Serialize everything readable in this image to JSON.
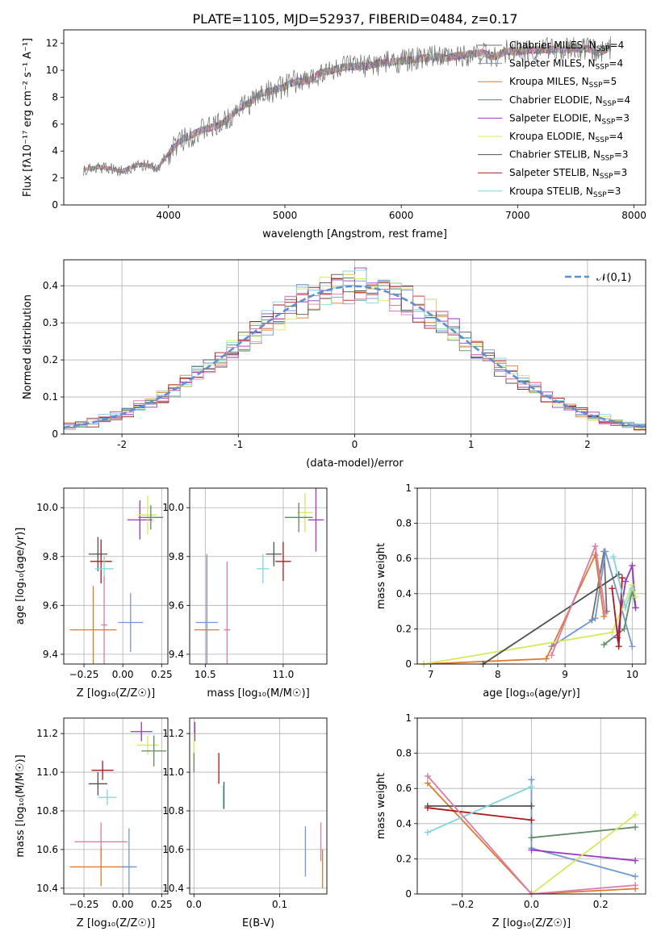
{
  "figure": {
    "title": "PLATE=1105, MJD=52937, FIBERID=0484, z=0.17"
  },
  "colors": [
    "#6f6f6f",
    "#7098d8",
    "#e07a2a",
    "#5f8a64",
    "#9a35c8",
    "#d4ea5a",
    "#505050",
    "#b01818",
    "#7fd6dc",
    "#e07aa8"
  ],
  "chart_data": [
    {
      "id": "spectrum",
      "type": "line",
      "xlabel": "wavelength [Angstrom, rest frame]",
      "ylabel": "Flux [f_λ 10^-17 erg cm^-2 s^-1 A^-1]",
      "xlim": [
        3100,
        8100
      ],
      "ylim": [
        0,
        13
      ],
      "xticks": [
        4000,
        5000,
        6000,
        7000,
        8000
      ],
      "yticks": [
        0,
        2,
        4,
        6,
        8,
        10,
        12
      ],
      "grid": false,
      "legend_position": "upper right",
      "data_series": {
        "name": "",
        "points": [
          [
            3270,
            2.6
          ],
          [
            3400,
            2.8
          ],
          [
            3500,
            2.7
          ],
          [
            3600,
            2.5
          ],
          [
            3700,
            2.9
          ],
          [
            3800,
            3.0
          ],
          [
            3900,
            2.6
          ],
          [
            3970,
            3.5
          ],
          [
            4100,
            4.8
          ],
          [
            4200,
            5.2
          ],
          [
            4300,
            5.6
          ],
          [
            4400,
            5.8
          ],
          [
            4500,
            6.3
          ],
          [
            4600,
            7.2
          ],
          [
            4700,
            7.6
          ],
          [
            4800,
            8.3
          ],
          [
            4900,
            8.5
          ],
          [
            5000,
            8.8
          ],
          [
            5100,
            9.2
          ],
          [
            5200,
            9.2
          ],
          [
            5300,
            9.8
          ],
          [
            5400,
            10.0
          ],
          [
            5500,
            10.2
          ],
          [
            5600,
            10.3
          ],
          [
            5700,
            10.3
          ],
          [
            5800,
            10.5
          ],
          [
            5900,
            10.6
          ],
          [
            6000,
            10.7
          ],
          [
            6100,
            10.8
          ],
          [
            6200,
            10.9
          ],
          [
            6300,
            11.0
          ],
          [
            6400,
            10.9
          ],
          [
            6500,
            11.1
          ],
          [
            6600,
            11.2
          ],
          [
            6700,
            11.3
          ],
          [
            6800,
            11.0
          ],
          [
            6900,
            11.4
          ],
          [
            7000,
            11.4
          ],
          [
            7100,
            11.5
          ],
          [
            7200,
            11.5
          ],
          [
            7300,
            11.6
          ],
          [
            7400,
            11.5
          ],
          [
            7500,
            11.6
          ],
          [
            7600,
            11.6
          ],
          [
            7700,
            11.3
          ],
          [
            7800,
            11.7
          ]
        ]
      },
      "legend": [
        "Chabrier MILES, N_SSP=4",
        "Salpeter MILES, N_SSP=4",
        "Kroupa MILES, N_SSP=5",
        "Chabrier ELODIE, N_SSP=4",
        "Salpeter ELODIE, N_SSP=3",
        "Kroupa ELODIE, N_SSP=4",
        "Chabrier STELIB, N_SSP=3",
        "Salpeter STELIB, N_SSP=3",
        "Kroupa STELIB, N_SSP=3"
      ]
    },
    {
      "id": "histogram",
      "type": "line",
      "xlabel": "(data-model)/error",
      "ylabel": "Normed distribution",
      "xlim": [
        -2.5,
        2.5
      ],
      "ylim": [
        0,
        0.47
      ],
      "xticks": [
        -2,
        -1,
        0,
        1,
        2
      ],
      "yticks": [
        0.0,
        0.1,
        0.2,
        0.3,
        0.4
      ],
      "grid": true,
      "legend_position": "upper right",
      "legend": [
        "𝒩(0,1)"
      ],
      "bin_width": 0.1,
      "bin_start": -2.5,
      "normal_curve": {
        "mean": 0,
        "sigma": 1
      }
    },
    {
      "id": "z-age",
      "type": "scatter",
      "xlabel": "Z [log10(Z/Z☉)]",
      "ylabel": "age [log10(age/yr)]",
      "xlim": [
        -0.38,
        0.29
      ],
      "ylim": [
        9.36,
        10.08
      ],
      "xticks": [
        -0.25,
        0.0,
        0.25
      ],
      "xticklabels": [
        "−0.25",
        "0.00",
        "0.25"
      ],
      "yticks": [
        9.4,
        9.6,
        9.8,
        10.0
      ],
      "yticklabels": [
        "9.4",
        "9.6",
        "9.8",
        "10.0"
      ],
      "grid": true,
      "points": [
        {
          "x": -0.16,
          "y": 9.81,
          "xerr": 0.06,
          "yerr": 0.07,
          "c": 6
        },
        {
          "x": -0.14,
          "y": 9.78,
          "xerr": 0.07,
          "yerr": 0.09,
          "c": 7
        },
        {
          "x": -0.12,
          "y": 9.75,
          "xerr": 0.06,
          "yerr": 0.05,
          "c": 8
        },
        {
          "x": -0.12,
          "y": 9.52,
          "xerr": 0.02,
          "yerr": 0.2,
          "c": 9
        },
        {
          "x": -0.19,
          "y": 9.5,
          "xerr": 0.15,
          "yerr": 0.18,
          "c": 2
        },
        {
          "x": 0.05,
          "y": 9.53,
          "xerr": 0.08,
          "yerr": 0.12,
          "c": 1
        },
        {
          "x": 0.11,
          "y": 9.95,
          "xerr": 0.08,
          "yerr": 0.08,
          "c": 4
        },
        {
          "x": 0.16,
          "y": 9.97,
          "xerr": 0.06,
          "yerr": 0.08,
          "c": 5
        },
        {
          "x": 0.18,
          "y": 9.96,
          "xerr": 0.08,
          "yerr": 0.05,
          "c": 3
        }
      ]
    },
    {
      "id": "mass-age",
      "type": "scatter",
      "xlabel": "mass [log10(M/M☉)]",
      "ylabel": "",
      "xlim": [
        10.4,
        11.28
      ],
      "ylim": [
        9.36,
        10.08
      ],
      "xticks": [
        10.5,
        11.0
      ],
      "xticklabels": [
        "10.5",
        "11.0"
      ],
      "yticks": [
        9.4,
        9.6,
        9.8,
        10.0
      ],
      "yticklabels": [
        "9.4",
        "9.6",
        "9.8",
        "10.0"
      ],
      "grid": true,
      "points": [
        {
          "x": 10.94,
          "y": 9.81,
          "xerr": 0.05,
          "yerr": 0.05,
          "c": 6
        },
        {
          "x": 11.0,
          "y": 9.78,
          "xerr": 0.05,
          "yerr": 0.08,
          "c": 7
        },
        {
          "x": 10.87,
          "y": 9.75,
          "xerr": 0.04,
          "yerr": 0.06,
          "c": 8
        },
        {
          "x": 10.64,
          "y": 9.5,
          "xerr": 0.02,
          "yerr": 0.28,
          "c": 9
        },
        {
          "x": 10.51,
          "y": 9.5,
          "xerr": 0.08,
          "yerr": 0.3,
          "c": 2
        },
        {
          "x": 10.51,
          "y": 9.53,
          "xerr": 0.07,
          "yerr": 0.28,
          "c": 1
        },
        {
          "x": 11.21,
          "y": 9.95,
          "xerr": 0.05,
          "yerr": 0.13,
          "c": 4
        },
        {
          "x": 11.14,
          "y": 9.98,
          "xerr": 0.05,
          "yerr": 0.08,
          "c": 5
        },
        {
          "x": 11.1,
          "y": 9.96,
          "xerr": 0.09,
          "yerr": 0.06,
          "c": 3
        }
      ]
    },
    {
      "id": "age-weight",
      "type": "line",
      "xlabel": "age [log10(age/yr)]",
      "ylabel": "mass weight",
      "xlim": [
        6.8,
        10.2
      ],
      "ylim": [
        0,
        1
      ],
      "xticks": [
        7,
        8,
        9,
        10
      ],
      "yticks": [
        0.0,
        0.2,
        0.4,
        0.6,
        0.8,
        1.0
      ],
      "grid": true,
      "series": [
        {
          "c": 0,
          "points": [
            [
              9.4,
              0.25
            ],
            [
              9.58,
              0.64
            ],
            [
              9.62,
              0.3
            ]
          ]
        },
        {
          "c": 1,
          "points": [
            [
              8.8,
              0.1
            ],
            [
              9.45,
              0.26
            ],
            [
              9.6,
              0.64
            ],
            [
              10.0,
              0.1
            ]
          ]
        },
        {
          "c": 2,
          "points": [
            [
              6.9,
              0.0
            ],
            [
              8.72,
              0.03
            ],
            [
              9.45,
              0.62
            ],
            [
              9.58,
              0.27
            ]
          ]
        },
        {
          "c": 3,
          "points": [
            [
              9.58,
              0.11
            ],
            [
              9.88,
              0.2
            ],
            [
              10.0,
              0.42
            ],
            [
              10.05,
              0.32
            ]
          ]
        },
        {
          "c": 4,
          "points": [
            [
              9.78,
              0.15
            ],
            [
              9.9,
              0.47
            ],
            [
              10.0,
              0.56
            ],
            [
              10.05,
              0.32
            ]
          ]
        },
        {
          "c": 5,
          "points": [
            [
              6.9,
              0.0
            ],
            [
              9.7,
              0.18
            ],
            [
              10.0,
              0.45
            ],
            [
              10.05,
              0.38
            ]
          ]
        },
        {
          "c": 6,
          "points": [
            [
              7.78,
              0.0
            ],
            [
              9.8,
              0.51
            ]
          ]
        },
        {
          "c": 7,
          "points": [
            [
              9.7,
              0.43
            ],
            [
              9.8,
              0.1
            ],
            [
              9.85,
              0.49
            ]
          ]
        },
        {
          "c": 8,
          "points": [
            [
              9.72,
              0.61
            ],
            [
              9.9,
              0.32
            ],
            [
              10.0,
              0.43
            ]
          ]
        },
        {
          "c": 9,
          "points": [
            [
              8.8,
              0.05
            ],
            [
              9.45,
              0.67
            ],
            [
              9.6,
              0.29
            ]
          ]
        }
      ]
    },
    {
      "id": "z-mass",
      "type": "scatter",
      "xlabel": "Z [log10(Z/Z☉)]",
      "ylabel": "mass [log10(M/M☉)]",
      "xlim": [
        -0.38,
        0.29
      ],
      "ylim": [
        10.37,
        11.28
      ],
      "xticks": [
        -0.25,
        0.0,
        0.25
      ],
      "xticklabels": [
        "−0.25",
        "0.00",
        "0.25"
      ],
      "yticks": [
        10.4,
        10.6,
        10.8,
        11.0,
        11.2
      ],
      "yticklabels": [
        "10.4",
        "10.6",
        "10.8",
        "11.0",
        "11.2"
      ],
      "grid": true,
      "points": [
        {
          "x": -0.16,
          "y": 10.94,
          "xerr": 0.06,
          "yerr": 0.06,
          "c": 6
        },
        {
          "x": -0.13,
          "y": 11.01,
          "xerr": 0.07,
          "yerr": 0.05,
          "c": 7
        },
        {
          "x": -0.1,
          "y": 10.87,
          "xerr": 0.06,
          "yerr": 0.04,
          "c": 8
        },
        {
          "x": -0.14,
          "y": 10.64,
          "xerr": 0.17,
          "yerr": 0.1,
          "c": 9
        },
        {
          "x": -0.14,
          "y": 10.51,
          "xerr": 0.2,
          "yerr": 0.1,
          "c": 2
        },
        {
          "x": 0.04,
          "y": 10.51,
          "xerr": 0.05,
          "yerr": 0.2,
          "c": 1
        },
        {
          "x": 0.12,
          "y": 11.21,
          "xerr": 0.07,
          "yerr": 0.05,
          "c": 4
        },
        {
          "x": 0.16,
          "y": 11.14,
          "xerr": 0.07,
          "yerr": 0.05,
          "c": 5
        },
        {
          "x": 0.2,
          "y": 11.11,
          "xerr": 0.08,
          "yerr": 0.08,
          "c": 3
        }
      ]
    },
    {
      "id": "ebv-mass",
      "type": "scatter",
      "xlabel": "E(B-V)",
      "ylabel": "",
      "xlim": [
        -0.005,
        0.155
      ],
      "ylim": [
        10.37,
        11.28
      ],
      "xticks": [
        0.0,
        0.1
      ],
      "xticklabels": [
        "0.0",
        "0.1"
      ],
      "yticks": [
        10.4,
        10.6,
        10.8,
        11.0,
        11.2
      ],
      "yticklabels": [
        "10.4",
        "10.6",
        "10.8",
        "11.0",
        "11.2"
      ],
      "grid": true,
      "points": [
        {
          "x": 0.001,
          "y": 11.21,
          "xerr": 0,
          "yerr": 0.05,
          "c": 4
        },
        {
          "x": 0.0,
          "y": 11.12,
          "xerr": 0,
          "yerr": 0.08,
          "c": 5
        },
        {
          "x": 0.0,
          "y": 11.05,
          "xerr": 0,
          "yerr": 0.05,
          "c": 3
        },
        {
          "x": 0.029,
          "y": 11.02,
          "xerr": 0,
          "yerr": 0.08,
          "c": 7
        },
        {
          "x": 0.035,
          "y": 10.88,
          "xerr": 0,
          "yerr": 0.07,
          "c": 6
        },
        {
          "x": 0.034,
          "y": 10.87,
          "xerr": 0,
          "yerr": 0.06,
          "c": 8
        },
        {
          "x": 0.13,
          "y": 10.59,
          "xerr": 0,
          "yerr": 0.13,
          "c": 1
        },
        {
          "x": 0.148,
          "y": 10.64,
          "xerr": 0,
          "yerr": 0.1,
          "c": 9
        },
        {
          "x": 0.15,
          "y": 10.5,
          "xerr": 0,
          "yerr": 0.1,
          "c": 2
        }
      ]
    },
    {
      "id": "z-weight",
      "type": "line",
      "xlabel": "Z [log10(Z/Z☉)]",
      "ylabel": "mass weight",
      "xlim": [
        -0.33,
        0.33
      ],
      "ylim": [
        0,
        1
      ],
      "xticks": [
        -0.2,
        0.0,
        0.2
      ],
      "xticklabels": [
        "−0.2",
        "0.0",
        "0.2"
      ],
      "yticks": [
        0.0,
        0.2,
        0.4,
        0.6,
        0.8,
        1.0
      ],
      "grid": true,
      "series": [
        {
          "c": 1,
          "points": [
            [
              0.0,
              0.65
            ],
            [
              0.0,
              0.26
            ],
            [
              0.3,
              0.1
            ]
          ]
        },
        {
          "c": 2,
          "points": [
            [
              -0.3,
              0.63
            ],
            [
              0.0,
              0.0
            ],
            [
              0.3,
              0.03
            ]
          ]
        },
        {
          "c": 3,
          "points": [
            [
              0.0,
              0.32
            ],
            [
              0.3,
              0.38
            ]
          ]
        },
        {
          "c": 4,
          "points": [
            [
              0.0,
              0.25
            ],
            [
              0.3,
              0.19
            ]
          ]
        },
        {
          "c": 5,
          "points": [
            [
              0.0,
              0.0
            ],
            [
              0.3,
              0.45
            ]
          ]
        },
        {
          "c": 6,
          "points": [
            [
              -0.3,
              0.5
            ],
            [
              0.0,
              0.5
            ]
          ]
        },
        {
          "c": 7,
          "points": [
            [
              -0.3,
              0.49
            ],
            [
              0.0,
              0.42
            ]
          ]
        },
        {
          "c": 8,
          "points": [
            [
              -0.3,
              0.35
            ],
            [
              0.0,
              0.61
            ]
          ]
        },
        {
          "c": 9,
          "points": [
            [
              -0.3,
              0.67
            ],
            [
              0.0,
              0.0
            ],
            [
              0.3,
              0.05
            ]
          ]
        }
      ]
    }
  ]
}
